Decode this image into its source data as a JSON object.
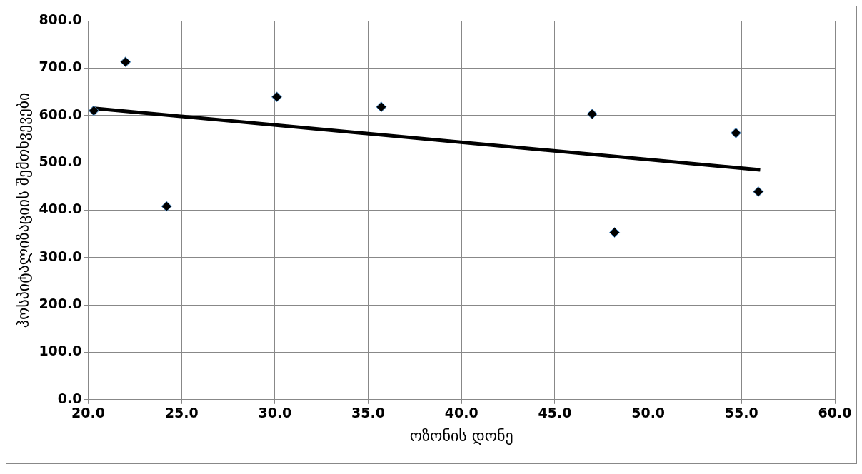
{
  "chart_data": {
    "type": "scatter",
    "xlabel": "ოზონის დონე",
    "ylabel": "ჰოსპიტალიზაციის შემთხვევები",
    "x": [
      20.3,
      22.0,
      24.2,
      30.1,
      35.7,
      47.0,
      48.2,
      54.7,
      55.9
    ],
    "series": [
      {
        "color": "#000000",
        "values": [
          610,
          713,
          408,
          639,
          618,
          603,
          353,
          563,
          439
        ],
        "marker": "diamond"
      },
      {
        "type": "line",
        "color": "#000000",
        "x": [
          20.3,
          56.0
        ],
        "values": [
          615,
          485
        ],
        "marker": "none",
        "line_style": "solid"
      }
    ],
    "xlim": [
      20,
      60
    ],
    "xticks": [
      {
        "value": 20,
        "label": "20.0"
      },
      {
        "value": 25,
        "label": "25.0"
      },
      {
        "value": 30,
        "label": "30.0"
      },
      {
        "value": 35,
        "label": "35.0"
      },
      {
        "value": 40,
        "label": "40.0"
      },
      {
        "value": 45,
        "label": "45.0"
      },
      {
        "value": 50,
        "label": "50.0"
      },
      {
        "value": 55,
        "label": "55.0"
      },
      {
        "value": 60,
        "label": "60.0"
      }
    ],
    "ylim": [
      0,
      800
    ],
    "yticks": [
      {
        "value": 0,
        "label": "0.0"
      },
      {
        "value": 100,
        "label": "100.0"
      },
      {
        "value": 200,
        "label": "200.0"
      },
      {
        "value": 300,
        "label": "300.0"
      },
      {
        "value": 400,
        "label": "400.0"
      },
      {
        "value": 500,
        "label": "500.0"
      },
      {
        "value": 600,
        "label": "600.0"
      },
      {
        "value": 700,
        "label": "700.0"
      },
      {
        "value": 800,
        "label": "800.0"
      }
    ],
    "grid": true,
    "legend": false
  }
}
